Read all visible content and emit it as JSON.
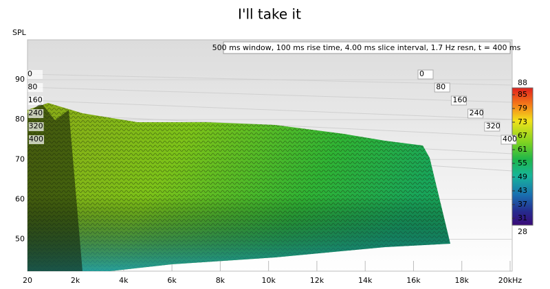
{
  "chart_data": {
    "type": "waterfall",
    "title": "I'll take it",
    "y_label": "SPL",
    "annotation": "500 ms window, 100 ms rise time, 4.00 ms slice interval, 1.7 Hz resn, t = 400 ms",
    "xlim": [
      20,
      20000
    ],
    "xticks": [
      20,
      {
        "value": 2000,
        "label": "2k"
      },
      {
        "value": 4000,
        "label": "4k"
      },
      {
        "value": 6000,
        "label": "6k"
      },
      {
        "value": 8000,
        "label": "8k"
      },
      {
        "value": 10000,
        "label": "10k"
      },
      {
        "value": 12000,
        "label": "12k"
      },
      {
        "value": 14000,
        "label": "14k"
      },
      {
        "value": 16000,
        "label": "16k"
      },
      {
        "value": 18000,
        "label": "18k"
      },
      {
        "value": 20000,
        "label": "20kHz"
      }
    ],
    "ylim": [
      42,
      100
    ],
    "yticks": [
      50,
      60,
      70,
      80,
      90
    ],
    "zlim": [
      0,
      400
    ],
    "zticks": [
      0,
      80,
      160,
      240,
      320,
      400
    ],
    "colorbar": {
      "lim": [
        28,
        88
      ],
      "ticks": [
        31,
        37,
        43,
        49,
        55,
        61,
        67,
        73,
        79,
        85
      ],
      "ends": [
        88,
        28
      ]
    },
    "grid": true
  }
}
